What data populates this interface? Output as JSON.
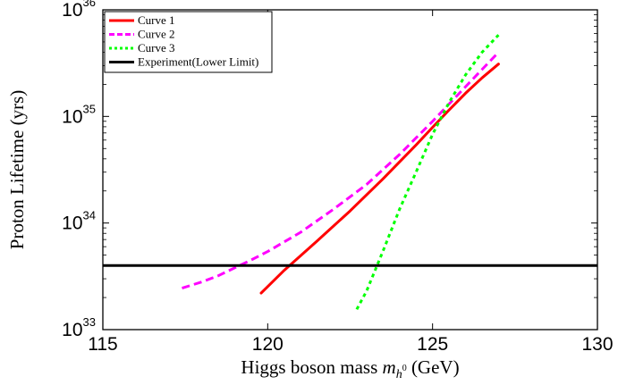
{
  "chart_data": {
    "type": "line",
    "xlabel": "Higgs boson mass",
    "xlabel_symbol": "m",
    "xlabel_symbol_sub": "h",
    "xlabel_symbol_subsup": "0",
    "xlabel_unit": "(GeV)",
    "ylabel": "Proton Lifetime (yrs)",
    "xlim": [
      115,
      130
    ],
    "ylim": [
      1e+33,
      1e+36
    ],
    "yscale": "log",
    "grid": false,
    "legend_position": "top-left",
    "x_ticks": [
      {
        "value": 115,
        "label": "115"
      },
      {
        "value": 120,
        "label": "120"
      },
      {
        "value": 125,
        "label": "125"
      },
      {
        "value": 130,
        "label": "130"
      }
    ],
    "y_ticks": [
      {
        "value": 1e+33,
        "base": "10",
        "exp": "33"
      },
      {
        "value": 1e+34,
        "base": "10",
        "exp": "34"
      },
      {
        "value": 1e+35,
        "base": "10",
        "exp": "35"
      },
      {
        "value": 1e+36,
        "base": "10",
        "exp": "36"
      }
    ],
    "series": [
      {
        "name": "Curve 1",
        "color": "#ff0000",
        "dash": "solid",
        "x": [
          119.8,
          120.5,
          121.5,
          122.5,
          123.5,
          124.5,
          125.0,
          125.5,
          126.0,
          126.5,
          127.0
        ],
        "y": [
          2.2e+33,
          3.6e+33,
          6.8e+33,
          1.3e+34,
          2.6e+34,
          5.4e+34,
          7.9e+34,
          1.15e+35,
          1.65e+35,
          2.3e+35,
          3.1e+35
        ]
      },
      {
        "name": "Curve 2",
        "color": "#ff00ff",
        "dash": "dashed",
        "x": [
          117.4,
          118.0,
          118.5,
          119.0,
          119.5,
          120.0,
          121.0,
          122.0,
          123.0,
          124.0,
          125.0,
          126.0,
          127.0
        ],
        "y": [
          2.45e+33,
          2.8e+33,
          3.2e+33,
          3.8e+33,
          4.5e+33,
          5.4e+33,
          8.2e+33,
          1.35e+34,
          2.3e+34,
          4.4e+34,
          9e+34,
          1.9e+35,
          4e+35
        ]
      },
      {
        "name": "Curve 3",
        "color": "#00ff00",
        "dash": "dotted",
        "x": [
          122.7,
          123.0,
          123.5,
          124.0,
          124.5,
          125.0,
          125.5,
          126.0,
          126.5,
          127.0
        ],
        "y": [
          1.55e+33,
          2.3e+33,
          5.5e+33,
          1.35e+34,
          3e+34,
          6.8e+34,
          1.35e+35,
          2.45e+35,
          4e+35,
          5.8e+35
        ]
      },
      {
        "name": "Experiment(Lower Limit)",
        "color": "#000000",
        "dash": "solid",
        "x": [
          115,
          130
        ],
        "y": [
          4e+33,
          4e+33
        ]
      }
    ]
  }
}
